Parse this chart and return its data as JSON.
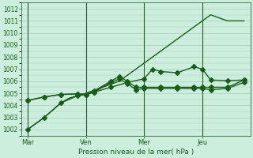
{
  "background_color": "#cceedd",
  "grid_color": "#aaccbb",
  "line_color": "#1a5c1a",
  "text_color": "#1a5c1a",
  "xlabel": "Pression niveau de la mer( hPa )",
  "ylim": [
    1001.5,
    1012.5
  ],
  "yticks": [
    1002,
    1003,
    1004,
    1005,
    1006,
    1007,
    1008,
    1009,
    1010,
    1011,
    1012
  ],
  "day_labels": [
    "Mar",
    "Ven",
    "Mer",
    "Jeu"
  ],
  "day_positions": [
    0,
    28,
    56,
    84
  ],
  "vline_positions": [
    0,
    28,
    56,
    84
  ],
  "series": [
    {
      "x": [
        0,
        8,
        16,
        24,
        28,
        32,
        40,
        48,
        56,
        60,
        64,
        72,
        80,
        84,
        88,
        96,
        104
      ],
      "y": [
        1002.0,
        1003.0,
        1004.2,
        1004.8,
        1004.9,
        1005.1,
        1005.5,
        1005.9,
        1006.2,
        1007.0,
        1006.8,
        1006.7,
        1007.2,
        1007.0,
        1006.1,
        1006.05,
        1006.1
      ],
      "marker": true
    },
    {
      "x": [
        0,
        8,
        16,
        24,
        28,
        32,
        40,
        44,
        48,
        52,
        56,
        64,
        72,
        80,
        84,
        88,
        96,
        104
      ],
      "y": [
        1004.4,
        1004.7,
        1004.9,
        1004.95,
        1004.9,
        1005.2,
        1006.0,
        1006.4,
        1006.0,
        1005.5,
        1005.5,
        1005.5,
        1005.5,
        1005.5,
        1005.5,
        1005.5,
        1005.5,
        1006.1
      ],
      "marker": true
    },
    {
      "x": [
        0,
        8,
        16,
        24,
        28,
        32,
        40,
        44,
        48,
        52,
        56,
        64,
        72,
        80,
        84,
        88,
        96,
        104
      ],
      "y": [
        1004.4,
        1004.7,
        1004.9,
        1004.95,
        1004.9,
        1005.1,
        1005.9,
        1006.2,
        1005.8,
        1005.3,
        1005.4,
        1005.4,
        1005.4,
        1005.4,
        1005.4,
        1005.3,
        1005.4,
        1005.9
      ],
      "marker": true
    },
    {
      "x": [
        0,
        8,
        16,
        20,
        24,
        28,
        36,
        44,
        52,
        60,
        68,
        76,
        84,
        88,
        96,
        104
      ],
      "y": [
        1002.0,
        1003.0,
        1004.2,
        1004.6,
        1004.8,
        1005.0,
        1005.5,
        1006.0,
        1007.0,
        1008.0,
        1009.0,
        1010.0,
        1011.0,
        1011.5,
        1011.0,
        1011.0
      ],
      "marker": false
    }
  ],
  "xlim": [
    -3,
    107
  ],
  "marker_size": 3,
  "linewidth": 1.0
}
